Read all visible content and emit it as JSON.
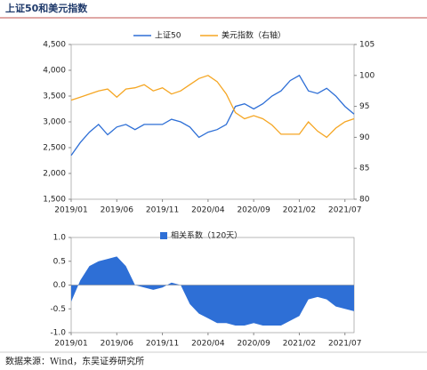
{
  "chart_data": [
    {
      "type": "line",
      "title": "上证50和美元指数",
      "x": [
        "2019/01",
        "2019/02",
        "2019/03",
        "2019/04",
        "2019/05",
        "2019/06",
        "2019/07",
        "2019/08",
        "2019/09",
        "2019/10",
        "2019/11",
        "2019/12",
        "2020/01",
        "2020/02",
        "2020/03",
        "2020/04",
        "2020/05",
        "2020/06",
        "2020/07",
        "2020/08",
        "2020/09",
        "2020/10",
        "2020/11",
        "2020/12",
        "2021/01",
        "2021/02",
        "2021/03",
        "2021/04",
        "2021/05",
        "2021/06",
        "2021/07",
        "2021/08"
      ],
      "xticks": [
        "2019/01",
        "2019/06",
        "2019/11",
        "2020/04",
        "2020/09",
        "2021/02",
        "2021/07"
      ],
      "series": [
        {
          "name": "上证50",
          "color": "#2e6fd6",
          "axis": "y",
          "values": [
            2350,
            2600,
            2800,
            2950,
            2750,
            2900,
            2950,
            2850,
            2950,
            2950,
            2950,
            3050,
            3000,
            2900,
            2700,
            2800,
            2850,
            2950,
            3300,
            3350,
            3250,
            3350,
            3500,
            3600,
            3800,
            3900,
            3600,
            3550,
            3650,
            3500,
            3300,
            3150
          ]
        },
        {
          "name": "美元指数（右轴）",
          "color": "#f5a623",
          "axis": "y2",
          "values": [
            96,
            96.5,
            97,
            97.5,
            97.8,
            96.5,
            97.8,
            98,
            98.5,
            97.5,
            98,
            97,
            97.5,
            98.5,
            99.5,
            100,
            99,
            97,
            94,
            93,
            93.5,
            93,
            92,
            90.5,
            90.5,
            90.5,
            92.5,
            91,
            90,
            91.5,
            92.5,
            93
          ]
        }
      ],
      "ylim": [
        1500,
        4500
      ],
      "yticks": [
        {
          "value": 1500,
          "label": "1,500"
        },
        {
          "value": 2000,
          "label": "2,000"
        },
        {
          "value": 2500,
          "label": "2,500"
        },
        {
          "value": 3000,
          "label": "3,000"
        },
        {
          "value": 3500,
          "label": "3,500"
        },
        {
          "value": 4000,
          "label": "4,000"
        },
        {
          "value": 4500,
          "label": "4,500"
        }
      ],
      "y2lim": [
        80,
        105
      ],
      "y2ticks": [
        80,
        85,
        90,
        95,
        100,
        105
      ]
    },
    {
      "type": "area",
      "x": [
        "2019/01",
        "2019/02",
        "2019/03",
        "2019/04",
        "2019/05",
        "2019/06",
        "2019/07",
        "2019/08",
        "2019/09",
        "2019/10",
        "2019/11",
        "2019/12",
        "2020/01",
        "2020/02",
        "2020/03",
        "2020/04",
        "2020/05",
        "2020/06",
        "2020/07",
        "2020/08",
        "2020/09",
        "2020/10",
        "2020/11",
        "2020/12",
        "2021/01",
        "2021/02",
        "2021/03",
        "2021/04",
        "2021/05",
        "2021/06",
        "2021/07",
        "2021/08"
      ],
      "xticks": [
        "2019/01",
        "2019/06",
        "2019/11",
        "2020/04",
        "2020/09",
        "2021/02",
        "2021/07"
      ],
      "series": [
        {
          "name": "相关系数（120天）",
          "color": "#2e6fd6",
          "values": [
            -0.35,
            0.1,
            0.4,
            0.5,
            0.55,
            0.6,
            0.4,
            0.0,
            -0.05,
            -0.1,
            -0.05,
            0.05,
            0.0,
            -0.4,
            -0.6,
            -0.7,
            -0.8,
            -0.8,
            -0.85,
            -0.85,
            -0.8,
            -0.85,
            -0.85,
            -0.85,
            -0.75,
            -0.65,
            -0.3,
            -0.25,
            -0.3,
            -0.45,
            -0.5,
            -0.55
          ]
        }
      ],
      "ylim": [
        -1,
        1
      ],
      "yticks": [
        {
          "value": -1,
          "label": "-1.0"
        },
        {
          "value": -0.5,
          "label": "-0.5"
        },
        {
          "value": 0,
          "label": "0.0"
        },
        {
          "value": 0.5,
          "label": "0.5"
        },
        {
          "value": 1,
          "label": "1.0"
        }
      ]
    }
  ],
  "source": "数据来源：Wind，东吴证券研究所"
}
